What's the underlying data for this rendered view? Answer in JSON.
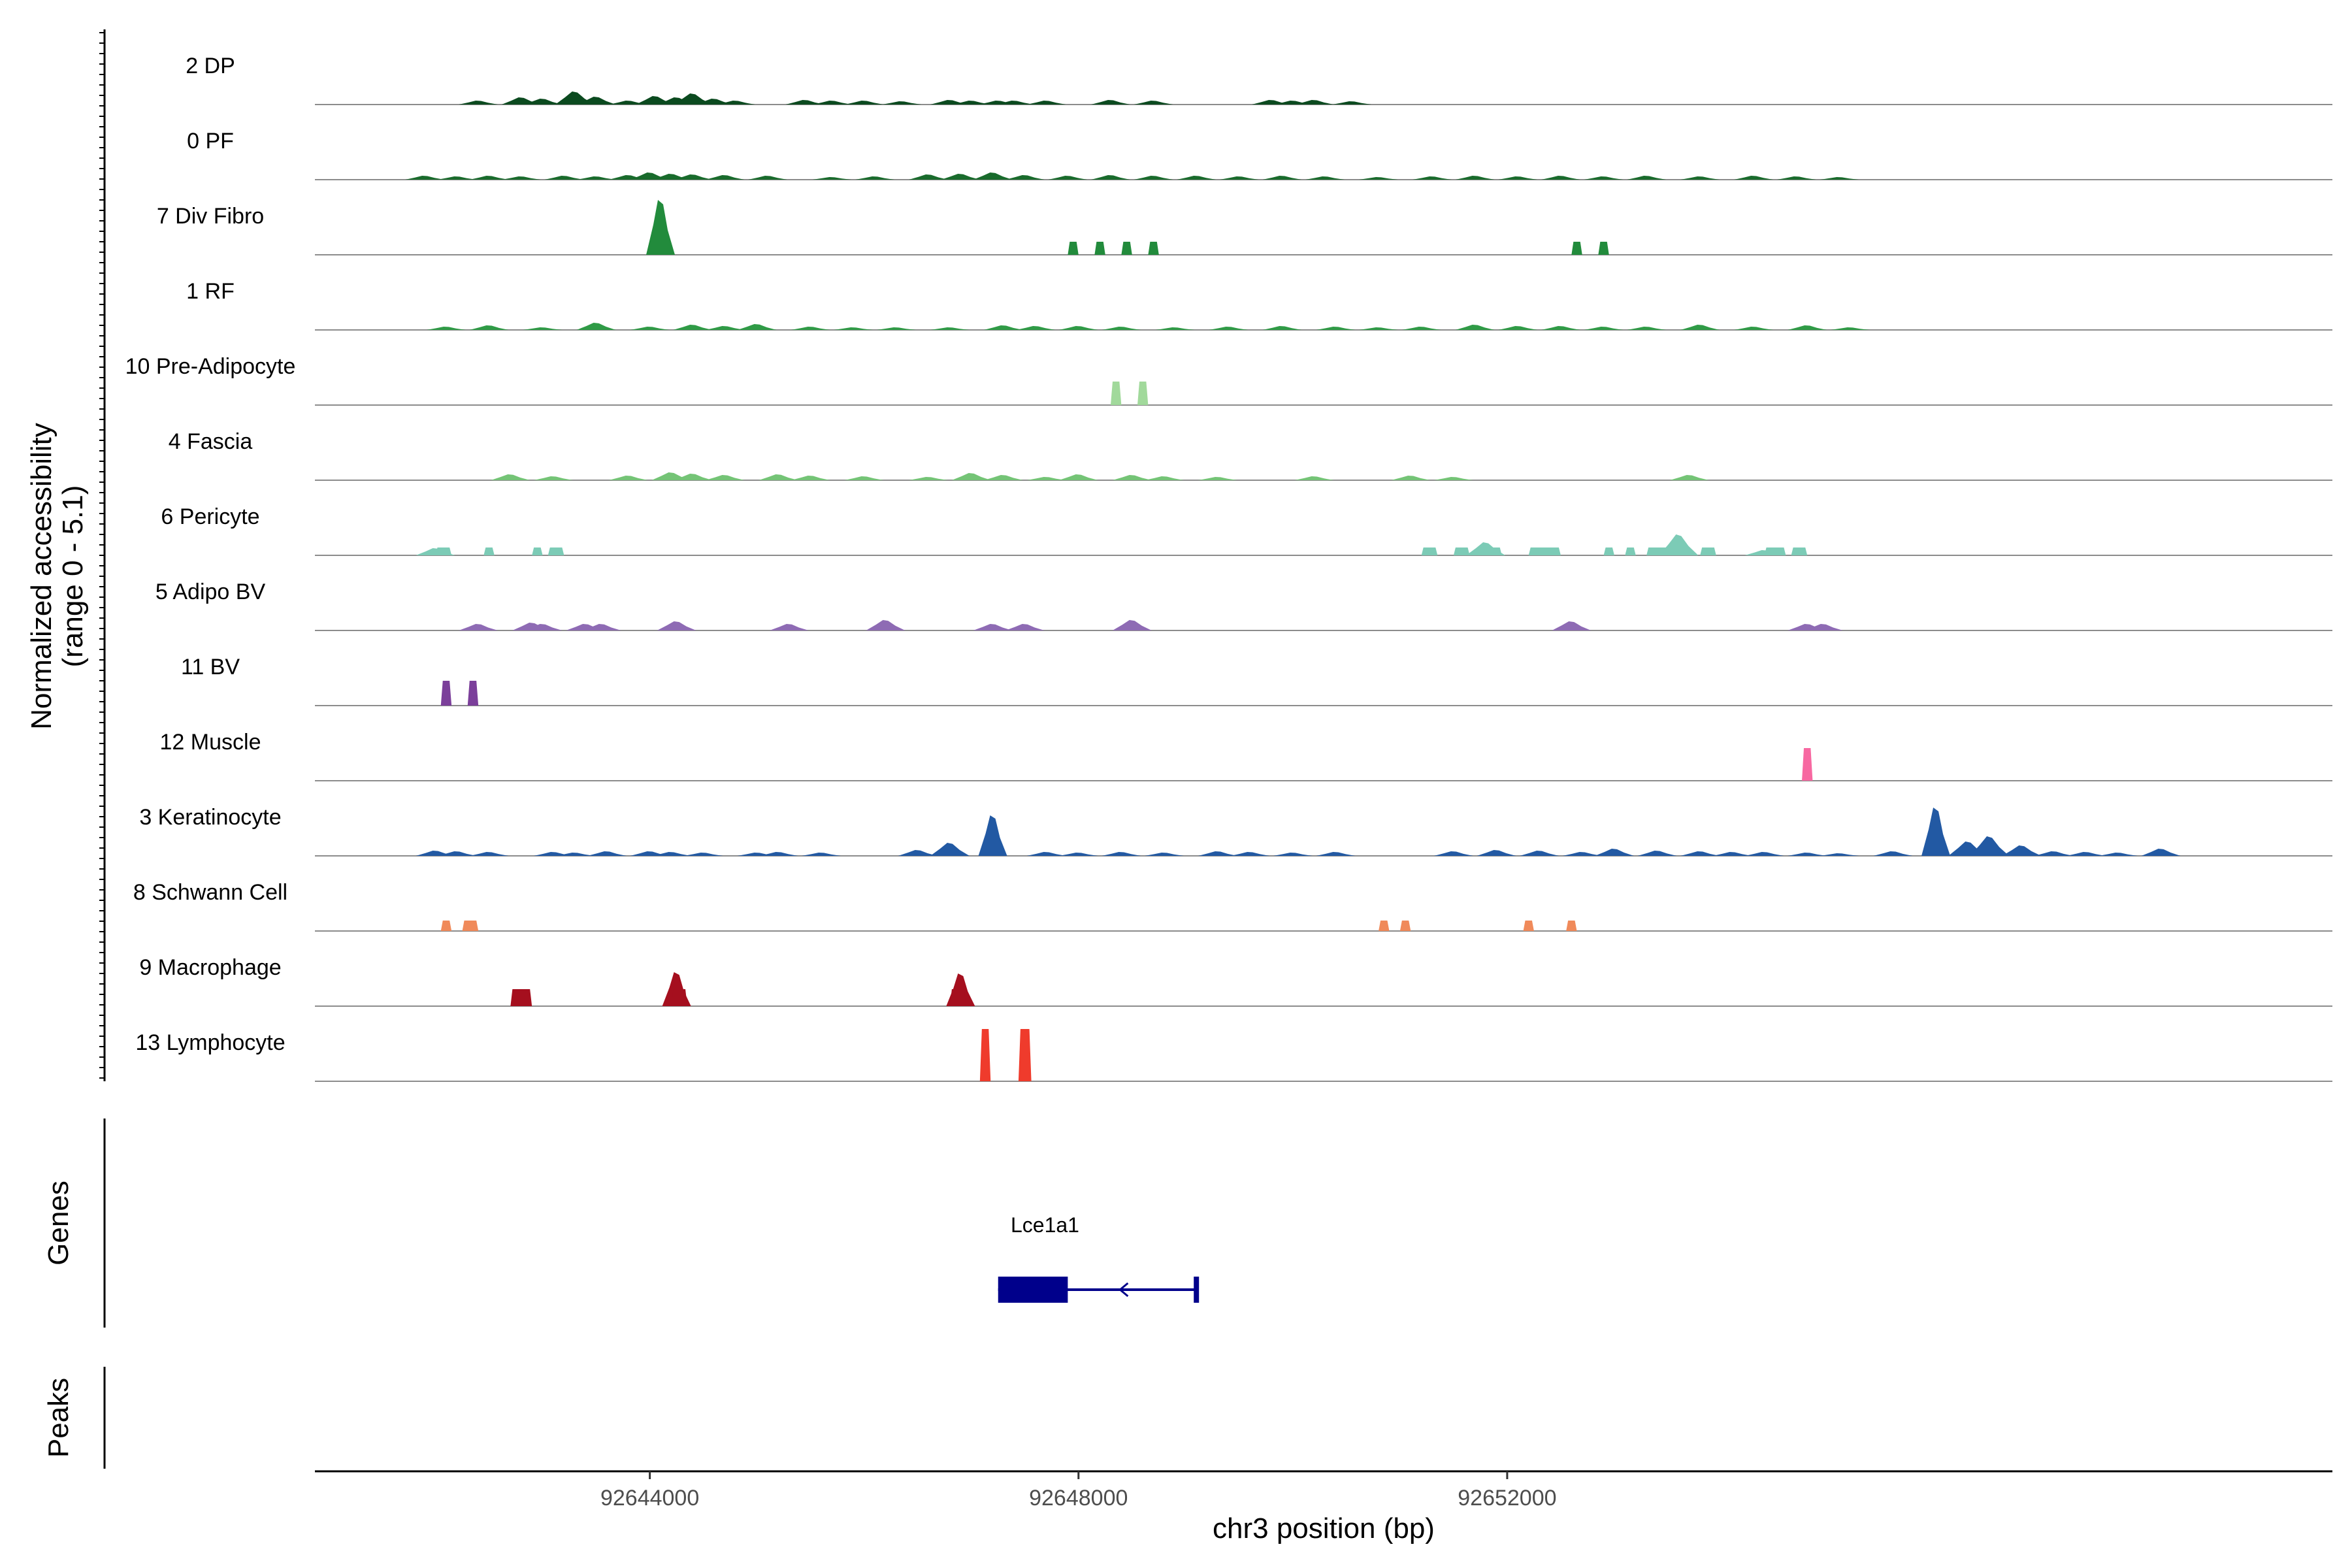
{
  "chart_data": {
    "type": "area",
    "chromosome": "chr3",
    "xlabel": "chr3 position (bp)",
    "xlim": [
      92640875,
      92659700
    ],
    "xticks": [
      92644000,
      92648000,
      92652000
    ],
    "xtick_labels": [
      "92644000",
      "92648000",
      "92652000"
    ],
    "ylabel": [
      "Normalized accessibility",
      "(range 0 - 5.1)"
    ],
    "ylim": [
      0,
      5.1
    ],
    "grid": false,
    "legend": "none",
    "panels": [
      {
        "name": "accessibility"
      },
      {
        "name": "Genes",
        "label": "Genes"
      },
      {
        "name": "Peaks",
        "label": "Peaks"
      }
    ],
    "series": [
      {
        "name": "2 DP",
        "color": "#0b4a1f",
        "peaks": [
          [
            92642400,
            0.3
          ],
          [
            92642800,
            0.55
          ],
          [
            92643000,
            0.45
          ],
          [
            92643300,
            1.0
          ],
          [
            92643500,
            0.6
          ],
          [
            92643800,
            0.3
          ],
          [
            92644050,
            0.65
          ],
          [
            92644250,
            0.55
          ],
          [
            92644400,
            0.85
          ],
          [
            92644600,
            0.45
          ],
          [
            92644800,
            0.3
          ],
          [
            92645450,
            0.35
          ],
          [
            92645700,
            0.3
          ],
          [
            92646000,
            0.3
          ],
          [
            92646350,
            0.25
          ],
          [
            92646800,
            0.35
          ],
          [
            92647000,
            0.3
          ],
          [
            92647250,
            0.3
          ],
          [
            92647400,
            0.3
          ],
          [
            92647700,
            0.3
          ],
          [
            92648300,
            0.35
          ],
          [
            92648700,
            0.3
          ],
          [
            92649800,
            0.35
          ],
          [
            92650000,
            0.3
          ],
          [
            92650200,
            0.35
          ],
          [
            92650550,
            0.25
          ]
        ]
      },
      {
        "name": "0 PF",
        "color": "#196b2c",
        "peaks": [
          [
            92641900,
            0.3
          ],
          [
            92642200,
            0.25
          ],
          [
            92642500,
            0.3
          ],
          [
            92642800,
            0.25
          ],
          [
            92643200,
            0.3
          ],
          [
            92643500,
            0.25
          ],
          [
            92643800,
            0.35
          ],
          [
            92644000,
            0.55
          ],
          [
            92644200,
            0.45
          ],
          [
            92644400,
            0.4
          ],
          [
            92644700,
            0.35
          ],
          [
            92645100,
            0.3
          ],
          [
            92645700,
            0.2
          ],
          [
            92646100,
            0.25
          ],
          [
            92646600,
            0.4
          ],
          [
            92646900,
            0.45
          ],
          [
            92647200,
            0.55
          ],
          [
            92647500,
            0.35
          ],
          [
            92647900,
            0.3
          ],
          [
            92648300,
            0.35
          ],
          [
            92648700,
            0.3
          ],
          [
            92649100,
            0.3
          ],
          [
            92649500,
            0.25
          ],
          [
            92649900,
            0.3
          ],
          [
            92650300,
            0.25
          ],
          [
            92650800,
            0.2
          ],
          [
            92651300,
            0.25
          ],
          [
            92651700,
            0.3
          ],
          [
            92652100,
            0.25
          ],
          [
            92652500,
            0.3
          ],
          [
            92652900,
            0.25
          ],
          [
            92653300,
            0.3
          ],
          [
            92653800,
            0.25
          ],
          [
            92654300,
            0.3
          ],
          [
            92654700,
            0.25
          ],
          [
            92655100,
            0.2
          ]
        ]
      },
      {
        "name": "7 Div Fibro",
        "color": "#228b3c",
        "peaks": [
          [
            92644100,
            4.2
          ]
        ],
        "blocks": [
          [
            92647900,
            92648000,
            1.0
          ],
          [
            92648150,
            92648250,
            1.0
          ],
          [
            92648400,
            92648500,
            1.0
          ],
          [
            92648650,
            92648750,
            1.0
          ],
          [
            92652600,
            92652700,
            1.0
          ],
          [
            92652850,
            92652950,
            1.0
          ]
        ]
      },
      {
        "name": "1 RF",
        "color": "#2f9b46",
        "peaks": [
          [
            92642100,
            0.25
          ],
          [
            92642500,
            0.35
          ],
          [
            92643000,
            0.2
          ],
          [
            92643500,
            0.55
          ],
          [
            92644000,
            0.25
          ],
          [
            92644400,
            0.4
          ],
          [
            92644700,
            0.3
          ],
          [
            92645000,
            0.45
          ],
          [
            92645500,
            0.25
          ],
          [
            92645900,
            0.2
          ],
          [
            92646300,
            0.2
          ],
          [
            92646800,
            0.2
          ],
          [
            92647300,
            0.35
          ],
          [
            92647600,
            0.3
          ],
          [
            92648000,
            0.3
          ],
          [
            92648400,
            0.25
          ],
          [
            92648900,
            0.2
          ],
          [
            92649400,
            0.25
          ],
          [
            92649900,
            0.3
          ],
          [
            92650400,
            0.25
          ],
          [
            92650800,
            0.2
          ],
          [
            92651200,
            0.25
          ],
          [
            92651700,
            0.4
          ],
          [
            92652100,
            0.3
          ],
          [
            92652500,
            0.3
          ],
          [
            92652900,
            0.25
          ],
          [
            92653300,
            0.25
          ],
          [
            92653800,
            0.4
          ],
          [
            92654300,
            0.25
          ],
          [
            92654800,
            0.35
          ],
          [
            92655200,
            0.2
          ]
        ]
      },
      {
        "name": "10 Pre-Adipocyte",
        "color": "#a1d99b",
        "blocks": [
          [
            92648300,
            92648400,
            1.8
          ],
          [
            92648550,
            92648650,
            1.8
          ]
        ]
      },
      {
        "name": "4 Fascia",
        "color": "#74c476",
        "peaks": [
          [
            92642700,
            0.45
          ],
          [
            92643100,
            0.3
          ],
          [
            92643800,
            0.35
          ],
          [
            92644200,
            0.6
          ],
          [
            92644400,
            0.5
          ],
          [
            92644700,
            0.4
          ],
          [
            92645200,
            0.45
          ],
          [
            92645500,
            0.35
          ],
          [
            92646000,
            0.3
          ],
          [
            92646600,
            0.25
          ],
          [
            92647000,
            0.55
          ],
          [
            92647300,
            0.4
          ],
          [
            92647700,
            0.25
          ],
          [
            92648000,
            0.45
          ],
          [
            92648500,
            0.4
          ],
          [
            92648800,
            0.3
          ],
          [
            92649300,
            0.25
          ],
          [
            92650200,
            0.3
          ],
          [
            92651100,
            0.35
          ],
          [
            92651500,
            0.25
          ],
          [
            92653700,
            0.4
          ]
        ]
      },
      {
        "name": "6 Pericyte",
        "color": "#7ccbb6",
        "peaks": [
          [
            92642000,
            0.55
          ],
          [
            92651800,
            1.0
          ],
          [
            92653600,
            1.6
          ],
          [
            92654400,
            0.4
          ]
        ],
        "blocks": [
          [
            92642000,
            92642150,
            0.6
          ],
          [
            92642450,
            92642550,
            0.6
          ],
          [
            92642900,
            92643000,
            0.6
          ],
          [
            92643050,
            92643200,
            0.6
          ],
          [
            92651200,
            92651350,
            0.6
          ],
          [
            92651500,
            92651650,
            0.6
          ],
          [
            92651700,
            92651950,
            0.6
          ],
          [
            92652200,
            92652500,
            0.6
          ],
          [
            92652900,
            92653000,
            0.6
          ],
          [
            92653100,
            92653200,
            0.6
          ],
          [
            92653300,
            92653500,
            0.6
          ],
          [
            92653800,
            92653950,
            0.6
          ],
          [
            92654400,
            92654600,
            0.6
          ],
          [
            92654650,
            92654800,
            0.6
          ]
        ]
      },
      {
        "name": "5 Adipo BV",
        "color": "#8e6bb4",
        "peaks": [
          [
            92643400,
            0.5
          ],
          [
            92642900,
            0.6
          ],
          [
            92643000,
            0.5
          ],
          [
            92642400,
            0.5
          ],
          [
            92643550,
            0.5
          ],
          [
            92644250,
            0.7
          ],
          [
            92645300,
            0.5
          ],
          [
            92646200,
            0.8
          ],
          [
            92647200,
            0.5
          ],
          [
            92647500,
            0.5
          ],
          [
            92648500,
            0.8
          ],
          [
            92652600,
            0.7
          ],
          [
            92654800,
            0.5
          ],
          [
            92654950,
            0.5
          ]
        ]
      },
      {
        "name": "11 BV",
        "color": "#7b3f9a",
        "blocks": [
          [
            92642050,
            92642150,
            1.9
          ],
          [
            92642300,
            92642400,
            1.9
          ]
        ]
      },
      {
        "name": "12 Muscle",
        "color": "#f768a1",
        "blocks": [
          [
            92654750,
            92654850,
            2.5
          ]
        ]
      },
      {
        "name": "3 Keratinocyte",
        "color": "#2259a3",
        "peaks": [
          [
            92642000,
            0.4
          ],
          [
            92642200,
            0.35
          ],
          [
            92642500,
            0.3
          ],
          [
            92643100,
            0.3
          ],
          [
            92643300,
            0.25
          ],
          [
            92643600,
            0.35
          ],
          [
            92644000,
            0.35
          ],
          [
            92644200,
            0.3
          ],
          [
            92644500,
            0.25
          ],
          [
            92645000,
            0.25
          ],
          [
            92645200,
            0.3
          ],
          [
            92645600,
            0.25
          ],
          [
            92646500,
            0.45
          ],
          [
            92646800,
            1.0
          ],
          [
            92647200,
            3.1
          ],
          [
            92647700,
            0.3
          ],
          [
            92648000,
            0.25
          ],
          [
            92648400,
            0.3
          ],
          [
            92648800,
            0.25
          ],
          [
            92649300,
            0.35
          ],
          [
            92649600,
            0.3
          ],
          [
            92650000,
            0.25
          ],
          [
            92650400,
            0.3
          ],
          [
            92651500,
            0.35
          ],
          [
            92651900,
            0.45
          ],
          [
            92652300,
            0.4
          ],
          [
            92652700,
            0.3
          ],
          [
            92653000,
            0.55
          ],
          [
            92653400,
            0.4
          ],
          [
            92653800,
            0.35
          ],
          [
            92654100,
            0.3
          ],
          [
            92654400,
            0.3
          ],
          [
            92654800,
            0.25
          ],
          [
            92655100,
            0.2
          ],
          [
            92655600,
            0.35
          ],
          [
            92656000,
            3.7
          ],
          [
            92656300,
            1.1
          ],
          [
            92656500,
            1.5
          ],
          [
            92656800,
            0.8
          ],
          [
            92657100,
            0.35
          ],
          [
            92657400,
            0.3
          ],
          [
            92657700,
            0.25
          ],
          [
            92658100,
            0.55
          ]
        ]
      },
      {
        "name": "8 Schwann Cell",
        "color": "#f08a5a",
        "blocks": [
          [
            92642050,
            92642150,
            0.8
          ],
          [
            92642250,
            92642400,
            0.8
          ],
          [
            92650800,
            92650900,
            0.8
          ],
          [
            92651000,
            92651100,
            0.8
          ],
          [
            92652150,
            92652250,
            0.8
          ],
          [
            92652550,
            92652650,
            0.8
          ]
        ]
      },
      {
        "name": "9 Macrophage",
        "color": "#a50f1e",
        "peaks": [
          [
            92644250,
            2.6
          ],
          [
            92646900,
            2.5
          ]
        ],
        "blocks": [
          [
            92642700,
            92642900,
            1.3
          ],
          [
            92644200,
            92644350,
            1.3
          ],
          [
            92646800,
            92646950,
            1.3
          ]
        ]
      },
      {
        "name": "13 Lymphocyte",
        "color": "#ef3b2c",
        "blocks": [
          [
            92647080,
            92647180,
            4.0
          ],
          [
            92647440,
            92647560,
            4.0
          ]
        ]
      }
    ],
    "genes": [
      {
        "name": "Lce1a1",
        "strand": "-",
        "tx_start": 92647250,
        "tx_end": 92649100,
        "cds_start": 92647250,
        "cds_end": 92647900,
        "color": "#00008b"
      }
    ],
    "peaks_track": []
  }
}
